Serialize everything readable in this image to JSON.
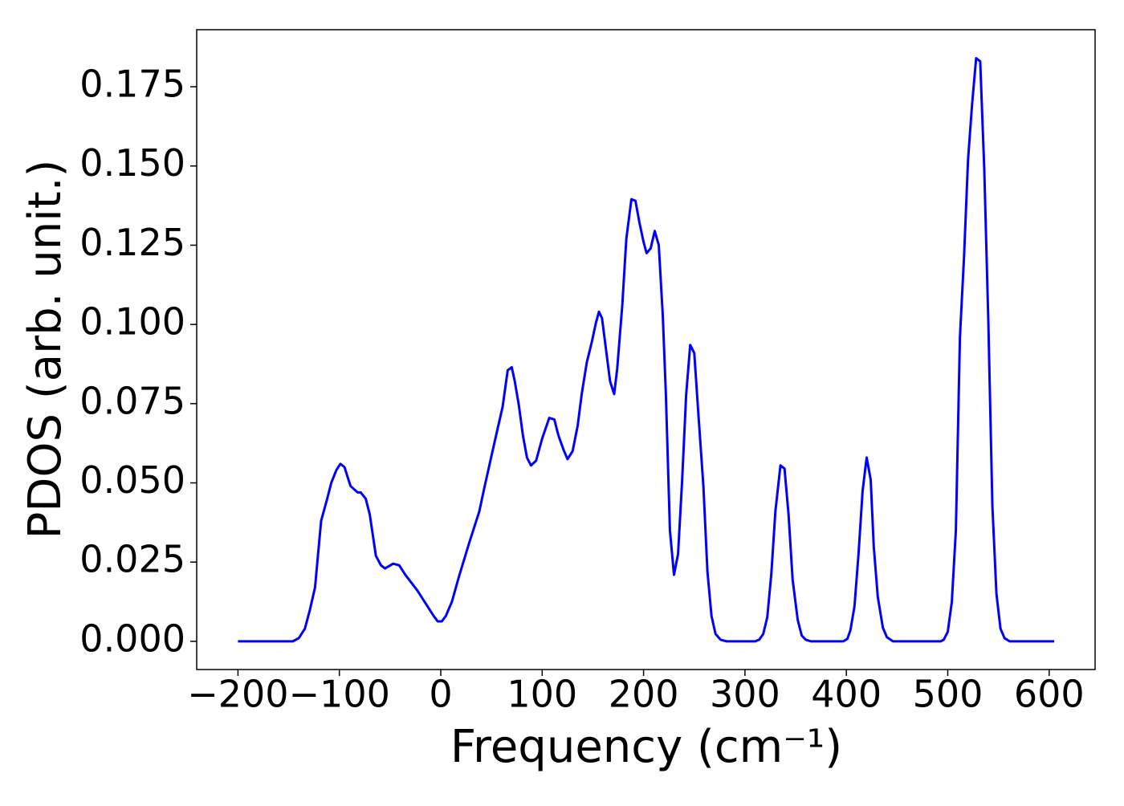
{
  "chart_data": {
    "type": "line",
    "x_label": "Frequency (cm⁻¹)",
    "y_label": "PDOS (arb. unit.)",
    "xlim": [
      -240.7,
      645.3
    ],
    "ylim": [
      -0.0089,
      0.193
    ],
    "xticks": [
      {
        "value": -200,
        "label": "−200"
      },
      {
        "value": -100,
        "label": "−100"
      },
      0,
      100,
      200,
      300,
      400,
      500,
      600
    ],
    "yticks": [
      {
        "value": 0,
        "label": "0.000"
      },
      0.025,
      {
        "value": 0.05,
        "label": "0.050"
      },
      {
        "value": 0.075,
        "label": "0.075"
      },
      {
        "value": 0.1,
        "label": "0.100"
      },
      0.125,
      {
        "value": 0.15,
        "label": "0.150"
      },
      0.175
    ],
    "grid": false,
    "x": [
      -200,
      -146,
      -140,
      -134,
      -129,
      -124,
      -118,
      -112,
      -108,
      -103,
      -99,
      -95,
      -89,
      -82,
      -79,
      -74,
      -70,
      -64,
      -59,
      -55,
      -47,
      -41,
      -35,
      -23,
      -15,
      -7,
      -3,
      1,
      5,
      11,
      18,
      28,
      38,
      43,
      50,
      56,
      61,
      66,
      70,
      73,
      77,
      81,
      85,
      89,
      94,
      100,
      107,
      112,
      116,
      121,
      125,
      130,
      135,
      139,
      144,
      149,
      153,
      156,
      159,
      163,
      167,
      171,
      174,
      179,
      183,
      188,
      192,
      196,
      200,
      203,
      207,
      211,
      215,
      219,
      222,
      226,
      230,
      234,
      238,
      242,
      246,
      250,
      254,
      259,
      263,
      267,
      271,
      276,
      282,
      310,
      314,
      318,
      322,
      326,
      330,
      335,
      339,
      343,
      347,
      352,
      356,
      360,
      365,
      397,
      401,
      404,
      408,
      412,
      416,
      420,
      424,
      427,
      431,
      436,
      440,
      446,
      493,
      496,
      500,
      504,
      508,
      512,
      516,
      520,
      524,
      528,
      532,
      536,
      540,
      544,
      548,
      552,
      556,
      561,
      605
    ],
    "series": [
      {
        "name": "PDOS",
        "color": "#0000ff",
        "values": [
          0,
          0,
          0.001,
          0.004,
          0.01,
          0.017,
          0.038,
          0.045,
          0.05,
          0.054,
          0.056,
          0.055,
          0.049,
          0.047,
          0.047,
          0.045,
          0.04,
          0.027,
          0.024,
          0.023,
          0.0245,
          0.024,
          0.021,
          0.016,
          0.012,
          0.008,
          0.0063,
          0.0063,
          0.008,
          0.0125,
          0.0205,
          0.031,
          0.041,
          0.0485,
          0.0585,
          0.067,
          0.074,
          0.0855,
          0.0865,
          0.082,
          0.0745,
          0.065,
          0.058,
          0.0555,
          0.057,
          0.064,
          0.0705,
          0.07,
          0.065,
          0.0605,
          0.0575,
          0.06,
          0.068,
          0.078,
          0.088,
          0.0945,
          0.1005,
          0.104,
          0.102,
          0.092,
          0.082,
          0.078,
          0.086,
          0.106,
          0.127,
          0.1395,
          0.139,
          0.132,
          0.126,
          0.1225,
          0.124,
          0.1295,
          0.125,
          0.1025,
          0.078,
          0.035,
          0.021,
          0.0275,
          0.0505,
          0.0778,
          0.0935,
          0.091,
          0.072,
          0.049,
          0.022,
          0.008,
          0.0023,
          0.0005,
          0,
          0,
          0.0005,
          0.0023,
          0.0076,
          0.0213,
          0.041,
          0.0555,
          0.0545,
          0.04,
          0.0195,
          0.0068,
          0.0018,
          0.0005,
          0,
          0,
          0.0008,
          0.0035,
          0.011,
          0.0276,
          0.0474,
          0.058,
          0.051,
          0.03,
          0.014,
          0.0043,
          0.0013,
          0,
          0,
          0.0005,
          0.003,
          0.0124,
          0.035,
          0.096,
          0.121,
          0.152,
          0.1695,
          0.184,
          0.183,
          0.149,
          0.101,
          0.0428,
          0.015,
          0.004,
          0.001,
          0,
          0
        ]
      }
    ]
  }
}
